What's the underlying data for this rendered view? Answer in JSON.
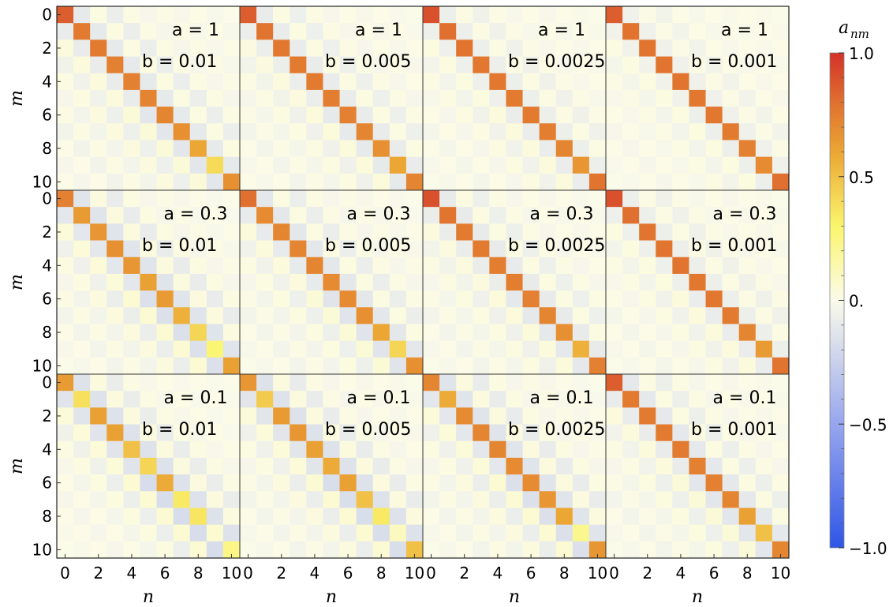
{
  "chart_data": {
    "type": "heatmap",
    "grid": {
      "rows": 3,
      "cols": 4
    },
    "a_values": [
      "1",
      "0.3",
      "0.1"
    ],
    "b_values": [
      "0.01",
      "0.005",
      "0.0025",
      "0.001"
    ],
    "a_prefix": "a = ",
    "b_prefix": "b = ",
    "xlabel": "n",
    "ylabel": "m",
    "x_ticks": [
      "0",
      "2",
      "4",
      "6",
      "8",
      "10"
    ],
    "y_ticks": [
      "0",
      "2",
      "4",
      "6",
      "8",
      "10"
    ],
    "matrix_size": 11,
    "colorbar": {
      "title": "a",
      "title_subscript": "nm",
      "ticks": [
        "1.0",
        "0.5",
        "0.",
        "−0.5",
        "−1.0"
      ],
      "tick_values": [
        1.0,
        0.5,
        0.0,
        -0.5,
        -1.0
      ],
      "range": [
        -1,
        1
      ],
      "stops": [
        [
          -1.0,
          "#2f55e6"
        ],
        [
          -0.5,
          "#97a6ee"
        ],
        [
          0.0,
          "#fbfbea"
        ],
        [
          0.3,
          "#fbf56c"
        ],
        [
          0.6,
          "#eba634"
        ],
        [
          0.8,
          "#e0702f"
        ],
        [
          1.0,
          "#d23229"
        ]
      ]
    },
    "panels": [
      {
        "row": 0,
        "col": 0,
        "a": "1",
        "b": "0.01",
        "diagonal": [
          0.86,
          0.76,
          0.76,
          0.74,
          0.74,
          0.73,
          0.72,
          0.68,
          0.6,
          0.4,
          0.68
        ],
        "offdiag_amp": 0.14,
        "decay": 1.2
      },
      {
        "row": 0,
        "col": 1,
        "a": "1",
        "b": "0.005",
        "diagonal": [
          0.86,
          0.78,
          0.77,
          0.76,
          0.76,
          0.75,
          0.74,
          0.72,
          0.68,
          0.6,
          0.72
        ],
        "offdiag_amp": 0.12,
        "decay": 1.2
      },
      {
        "row": 0,
        "col": 2,
        "a": "1",
        "b": "0.0025",
        "diagonal": [
          0.9,
          0.8,
          0.78,
          0.77,
          0.77,
          0.76,
          0.76,
          0.75,
          0.72,
          0.66,
          0.78
        ],
        "offdiag_amp": 0.1,
        "decay": 1.2
      },
      {
        "row": 0,
        "col": 3,
        "a": "1",
        "b": "0.001",
        "diagonal": [
          0.86,
          0.79,
          0.78,
          0.78,
          0.78,
          0.77,
          0.77,
          0.76,
          0.74,
          0.7,
          0.8
        ],
        "offdiag_amp": 0.08,
        "decay": 1.2
      },
      {
        "row": 1,
        "col": 0,
        "a": "0.3",
        "b": "0.01",
        "diagonal": [
          0.74,
          0.64,
          0.66,
          0.68,
          0.66,
          0.62,
          0.64,
          0.56,
          0.42,
          0.28,
          0.62
        ],
        "offdiag_amp": 0.2,
        "decay": 0.9
      },
      {
        "row": 1,
        "col": 1,
        "a": "0.3",
        "b": "0.005",
        "diagonal": [
          0.8,
          0.7,
          0.72,
          0.72,
          0.72,
          0.7,
          0.7,
          0.68,
          0.6,
          0.42,
          0.68
        ],
        "offdiag_amp": 0.16,
        "decay": 1.0
      },
      {
        "row": 1,
        "col": 2,
        "a": "0.3",
        "b": "0.0025",
        "diagonal": [
          0.9,
          0.78,
          0.76,
          0.76,
          0.75,
          0.75,
          0.74,
          0.72,
          0.68,
          0.56,
          0.74
        ],
        "offdiag_amp": 0.13,
        "decay": 1.1
      },
      {
        "row": 1,
        "col": 3,
        "a": "0.3",
        "b": "0.001",
        "diagonal": [
          0.9,
          0.8,
          0.78,
          0.78,
          0.78,
          0.77,
          0.77,
          0.76,
          0.72,
          0.64,
          0.78
        ],
        "offdiag_amp": 0.1,
        "decay": 1.2
      },
      {
        "row": 2,
        "col": 0,
        "a": "0.1",
        "b": "0.01",
        "diagonal": [
          0.64,
          0.38,
          0.62,
          0.62,
          0.5,
          0.42,
          0.58,
          0.34,
          0.36,
          0.06,
          0.24
        ],
        "offdiag_amp": 0.24,
        "decay": 0.7
      },
      {
        "row": 2,
        "col": 1,
        "a": "0.1",
        "b": "0.005",
        "diagonal": [
          0.66,
          0.46,
          0.64,
          0.66,
          0.62,
          0.58,
          0.62,
          0.5,
          0.34,
          0.1,
          0.5
        ],
        "offdiag_amp": 0.22,
        "decay": 0.8
      },
      {
        "row": 2,
        "col": 2,
        "a": "0.1",
        "b": "0.0025",
        "diagonal": [
          0.72,
          0.58,
          0.7,
          0.72,
          0.72,
          0.7,
          0.7,
          0.66,
          0.6,
          0.22,
          0.66
        ],
        "offdiag_amp": 0.2,
        "decay": 0.9
      },
      {
        "row": 2,
        "col": 3,
        "a": "0.1",
        "b": "0.001",
        "diagonal": [
          0.86,
          0.76,
          0.76,
          0.76,
          0.76,
          0.74,
          0.74,
          0.72,
          0.62,
          0.5,
          0.72
        ],
        "offdiag_amp": 0.15,
        "decay": 1.0
      }
    ]
  }
}
